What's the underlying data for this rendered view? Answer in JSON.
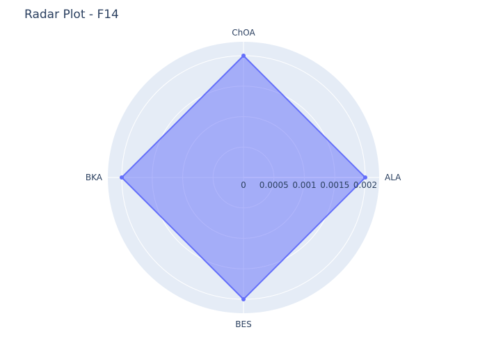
{
  "chart_data": {
    "type": "radar",
    "title": "Radar Plot - F14",
    "categories": [
      "ALA",
      "ChOA",
      "BKA",
      "BES"
    ],
    "values": [
      0.002,
      0.002,
      0.002,
      0.002
    ],
    "radial_range": [
      0,
      0.002
    ],
    "radial_ticks": [
      "0",
      "0.0005",
      "0.001",
      "0.0015",
      "0.002"
    ],
    "radial_tick_values": [
      0,
      0.0005,
      0.001,
      0.0015,
      0.002
    ],
    "fill": "toself",
    "grid": true,
    "colors": {
      "polar_bg": "#e5ecf6",
      "grid": "#ffffff",
      "line": "#636efa",
      "fill": "rgba(99,110,250,0.5)",
      "text": "#2a3f5f"
    }
  }
}
